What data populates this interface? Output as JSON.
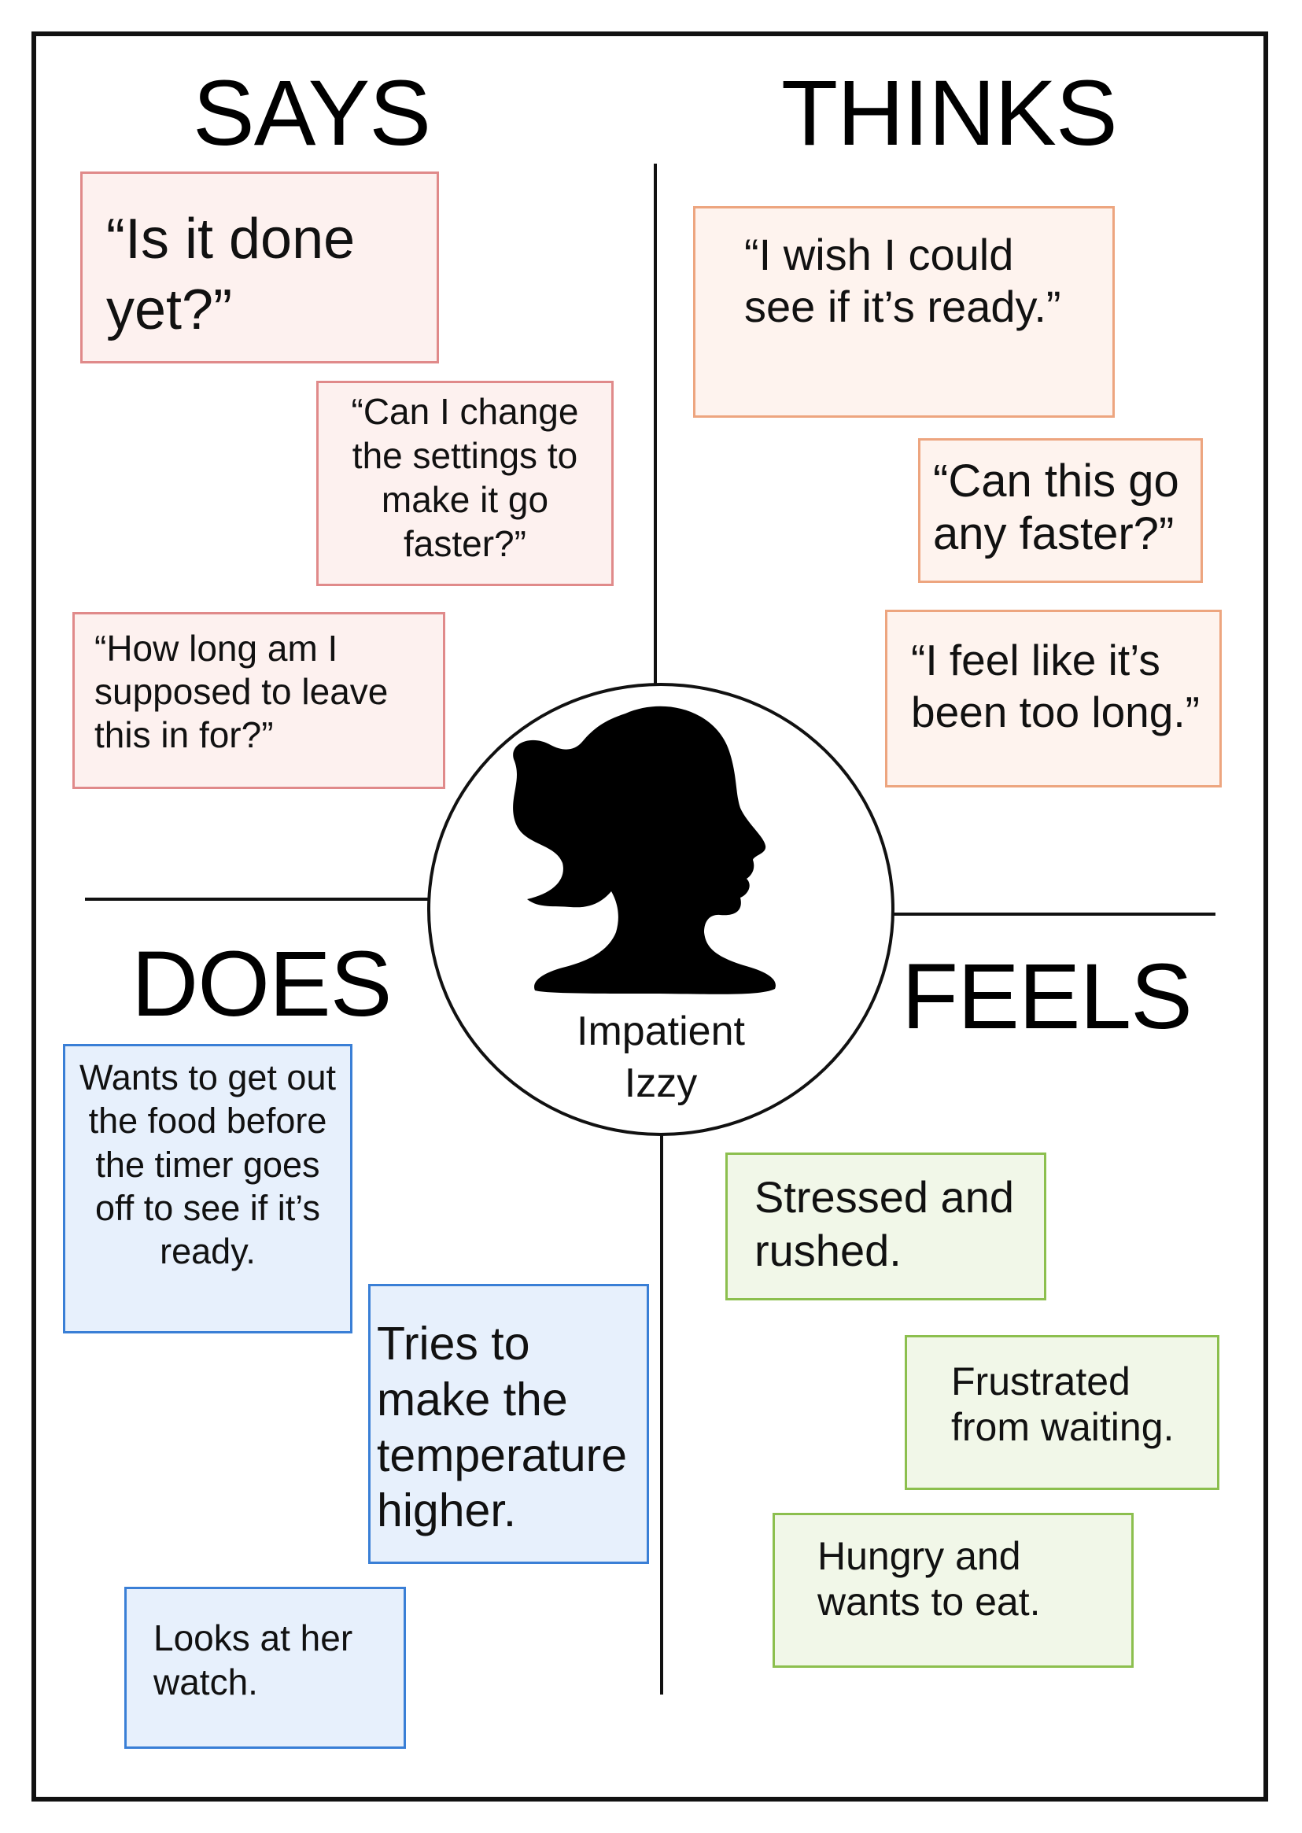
{
  "headings": {
    "says": "SAYS",
    "thinks": "THINKS",
    "does": "DOES",
    "feels": "FEELS"
  },
  "persona": {
    "name_line1": "Impatient",
    "name_line2": "Izzy",
    "icon": "woman-ponytail-silhouette-icon"
  },
  "says": [
    "“Is it done yet?”",
    "“Can I change the settings to make it go faster?”",
    "“How long am I supposed to leave this in for?”"
  ],
  "thinks": [
    "“I wish I could see if it’s ready.”",
    "“Can this go any faster?”",
    "“I feel like it’s been too long.”"
  ],
  "does": [
    "Wants to get out the food before the timer goes off to see if it’s ready.",
    "Tries to make the temperature higher.",
    "Looks at her watch."
  ],
  "feels": [
    "Stressed and rushed.",
    "Frustrated from waiting.",
    "Hungry and wants to eat."
  ],
  "colors": {
    "says_border": "#e08a8a",
    "thinks_border": "#eda57f",
    "does_border": "#3a7fd6",
    "feels_border": "#8cbf4e"
  }
}
